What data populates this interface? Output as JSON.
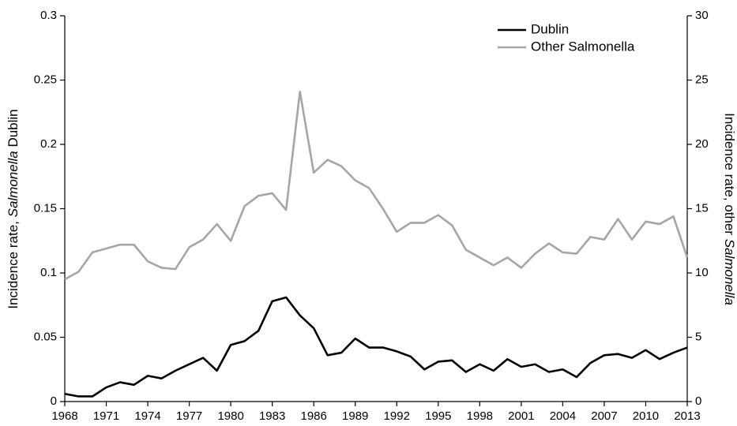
{
  "chart_data": {
    "type": "line",
    "x": [
      1968,
      1969,
      1970,
      1971,
      1972,
      1973,
      1974,
      1975,
      1976,
      1977,
      1978,
      1979,
      1980,
      1981,
      1982,
      1983,
      1984,
      1985,
      1986,
      1987,
      1988,
      1989,
      1990,
      1991,
      1992,
      1993,
      1994,
      1995,
      1996,
      1997,
      1998,
      1999,
      2000,
      2001,
      2002,
      2003,
      2004,
      2005,
      2006,
      2007,
      2008,
      2009,
      2010,
      2011,
      2012,
      2013
    ],
    "series": [
      {
        "name": "Dublin",
        "color": "#000000",
        "axis": "y",
        "values": [
          0.006,
          0.004,
          0.004,
          0.011,
          0.015,
          0.013,
          0.02,
          0.018,
          0.024,
          0.029,
          0.034,
          0.024,
          0.044,
          0.047,
          0.055,
          0.078,
          0.081,
          0.067,
          0.057,
          0.036,
          0.038,
          0.049,
          0.042,
          0.042,
          0.039,
          0.035,
          0.025,
          0.031,
          0.032,
          0.023,
          0.029,
          0.024,
          0.033,
          0.027,
          0.029,
          0.023,
          0.025,
          0.019,
          0.03,
          0.036,
          0.037,
          0.034,
          0.04,
          0.033,
          0.038,
          0.042
        ]
      },
      {
        "name": "Other Salmonella",
        "color": "#a6a6a6",
        "axis": "y2",
        "values": [
          9.5,
          10.1,
          11.6,
          11.9,
          12.2,
          12.2,
          10.9,
          10.4,
          10.3,
          12.0,
          12.6,
          13.8,
          12.5,
          15.2,
          16.0,
          16.2,
          14.9,
          24.1,
          17.8,
          18.8,
          18.3,
          17.2,
          16.6,
          15.0,
          13.2,
          13.9,
          13.9,
          14.5,
          13.7,
          11.8,
          11.2,
          10.6,
          11.2,
          10.4,
          11.5,
          12.3,
          11.6,
          11.5,
          12.8,
          12.6,
          14.2,
          12.6,
          14.0,
          13.8,
          14.4,
          11.2
        ]
      }
    ],
    "y_label": [
      {
        "text": "Incidence rate, "
      },
      {
        "text": "Salmonella",
        "italic": true
      },
      {
        "text": " Dublin"
      }
    ],
    "y2_label": [
      {
        "text": "Incidence rate, other "
      },
      {
        "text": "Salmonella",
        "italic": true
      }
    ],
    "xlim": [
      1968,
      2013
    ],
    "xticks": [
      1968,
      1971,
      1974,
      1977,
      1980,
      1983,
      1986,
      1989,
      1992,
      1995,
      1998,
      2001,
      2004,
      2007,
      2010,
      2013
    ],
    "ylim": [
      0,
      0.3
    ],
    "yticks": [
      0,
      0.05,
      0.1,
      0.15,
      0.2,
      0.25,
      0.3
    ],
    "y2lim": [
      0,
      30
    ],
    "y2ticks": [
      0,
      5,
      10,
      15,
      20,
      25,
      30
    ],
    "grid": false,
    "legend": "upper right"
  }
}
